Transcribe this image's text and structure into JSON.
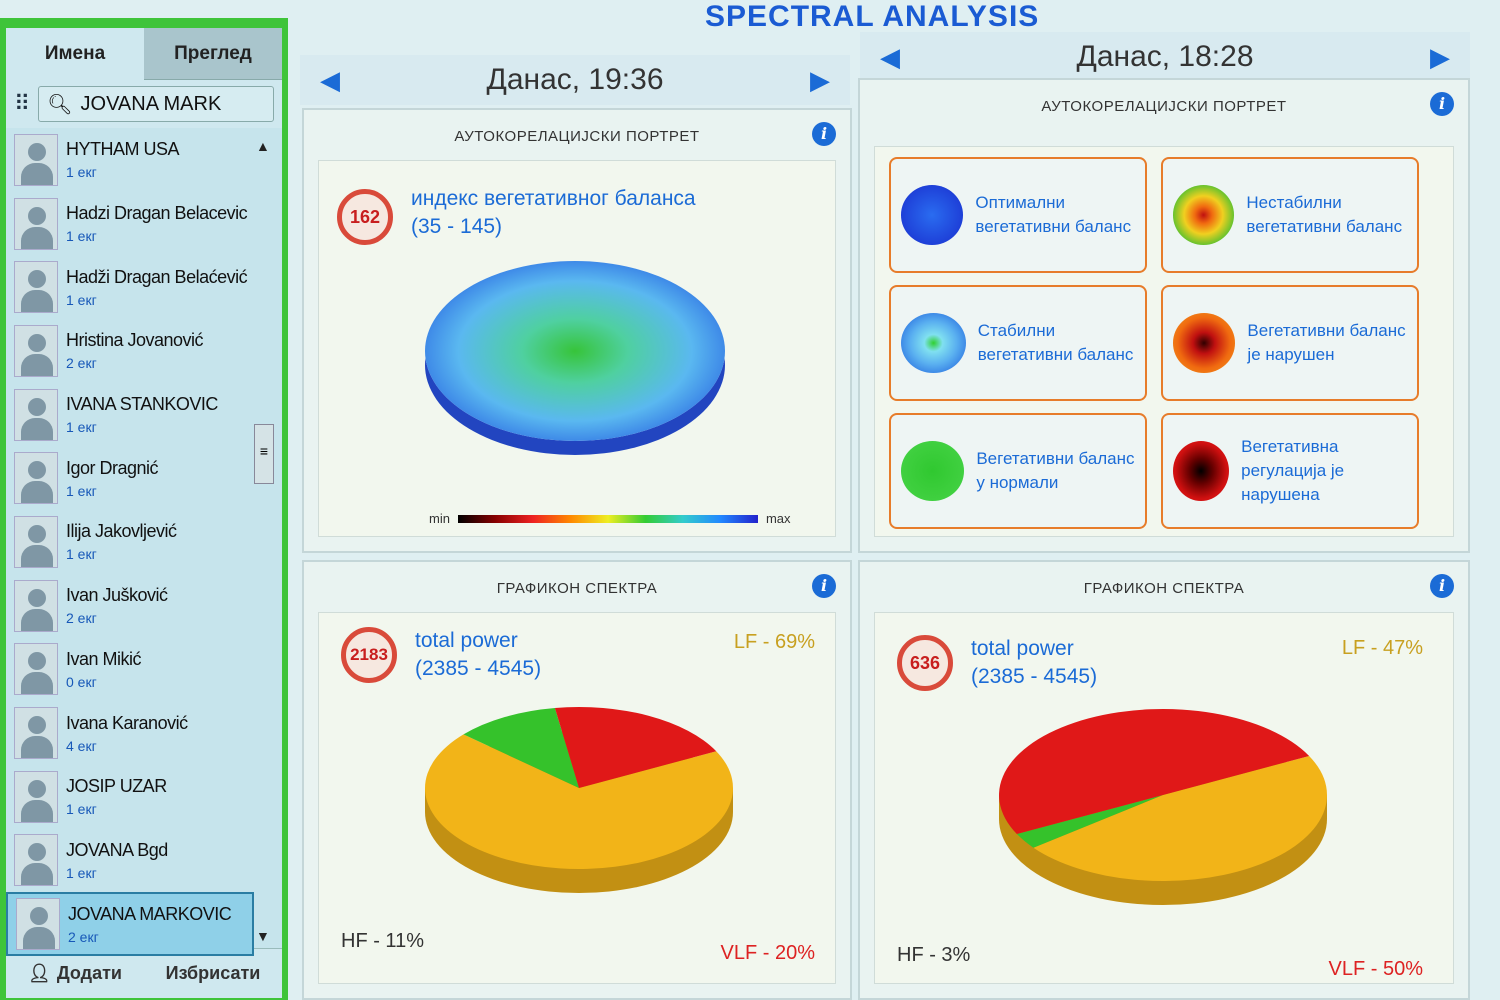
{
  "sidebar": {
    "tabs": [
      "Имена",
      "Преглед"
    ],
    "search_value": "JOVANA MARK",
    "patients": [
      {
        "name": "HYTHAM USA",
        "count": "1 екг"
      },
      {
        "name": "Hadzi Dragan Belacevic",
        "count": "1 екг"
      },
      {
        "name": "Hadži Dragan Belaćević",
        "count": "1 екг"
      },
      {
        "name": "Hristina Jovanović",
        "count": "2 екг"
      },
      {
        "name": "IVANA STANKOVIC",
        "count": "1 екг"
      },
      {
        "name": "Igor Dragnić",
        "count": "1 екг"
      },
      {
        "name": "Ilija Jakovljević",
        "count": "1 екг"
      },
      {
        "name": "Ivan Jušković",
        "count": "2 екг"
      },
      {
        "name": "Ivan Mikić",
        "count": "0 екг"
      },
      {
        "name": "Ivana Karanović",
        "count": "4 екг"
      },
      {
        "name": "JOSIP UZAR",
        "count": "1 екг"
      },
      {
        "name": "JOVANA Bgd",
        "count": "1 екг"
      },
      {
        "name": "JOVANA MARKOVIC",
        "count": "2 екг",
        "selected": true
      }
    ],
    "add_label": "Додати",
    "delete_label": "Избрисати"
  },
  "title": "SPECTRAL ANALYSIS",
  "left": {
    "date": "Данас, 19:36",
    "portrait": {
      "title": "АУТОКОРЕЛАЦИЈСКИ ПОРТРЕТ",
      "value": "162",
      "label": "индекс вегетативног баланса",
      "range": "(35 - 145)",
      "min": "min",
      "max": "max"
    },
    "spectrum": {
      "title": "ГРАФИКОН СПЕКТРА",
      "value": "2183",
      "label": "total power",
      "range": "(2385 - 4545)",
      "lf": "LF - 69%",
      "hf": "HF - 11%",
      "vlf": "VLF - 20%"
    }
  },
  "right": {
    "date": "Данас, 18:28",
    "portrait": {
      "title": "АУТОКОРЕЛАЦИЈСКИ ПОРТРЕТ",
      "cards": [
        {
          "text": "Оптимални вегетативни баланс"
        },
        {
          "text": "Нестабилни вегетативни баланс"
        },
        {
          "text": "Стабилни вегетативни баланс"
        },
        {
          "text": "Вегетативни баланс је нарушен"
        },
        {
          "text": "Вегетативни баланс у нормали"
        },
        {
          "text": "Вегетативна регулација је нарушена"
        }
      ]
    },
    "spectrum": {
      "title": "ГРАФИКОН СПЕКТРА",
      "value": "636",
      "label": "total power",
      "range": "(2385 - 4545)",
      "lf": "LF - 47%",
      "hf": "HF - 3%",
      "vlf": "VLF - 50%"
    }
  },
  "chart_data": [
    {
      "type": "pie",
      "title": "ГРАФИКОН СПЕКТРА (Данас, 19:36)",
      "categories": [
        "LF",
        "HF",
        "VLF"
      ],
      "values": [
        69,
        11,
        20
      ],
      "colors": [
        "#f2b418",
        "#35c22b",
        "#e01818"
      ]
    },
    {
      "type": "pie",
      "title": "ГРАФИКОН СПЕКТРА (Данас, 18:28)",
      "categories": [
        "LF",
        "HF",
        "VLF"
      ],
      "values": [
        47,
        3,
        50
      ],
      "colors": [
        "#f2b418",
        "#35c22b",
        "#e01818"
      ]
    }
  ]
}
